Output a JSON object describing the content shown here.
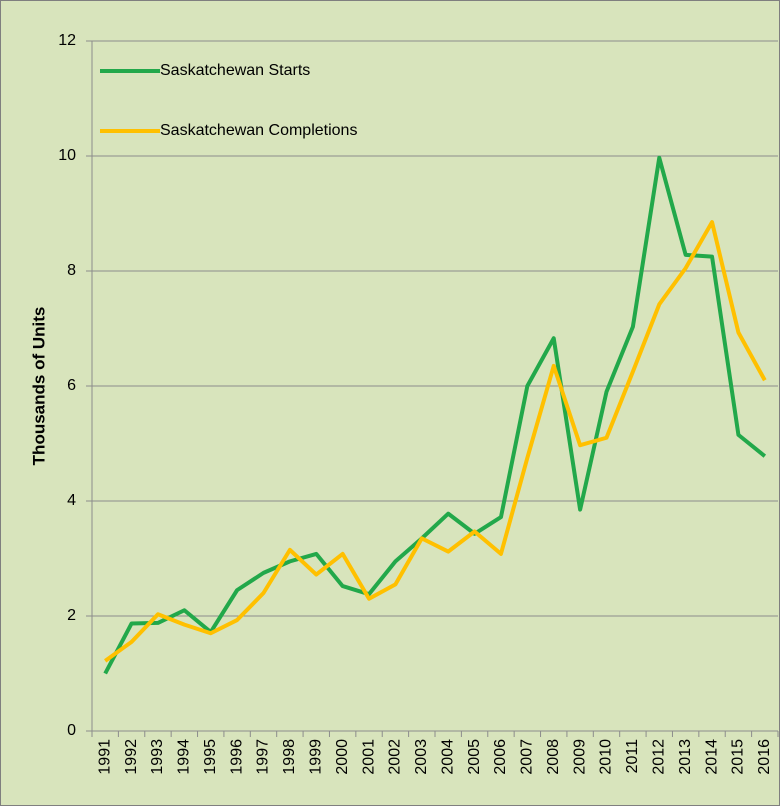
{
  "chart_data": {
    "type": "line",
    "y_label": "Thousands of Units",
    "categories": [
      "1991",
      "1992",
      "1993",
      "1994",
      "1995",
      "1996",
      "1997",
      "1998",
      "1999",
      "2000",
      "2001",
      "2002",
      "2003",
      "2004",
      "2005",
      "2006",
      "2007",
      "2008",
      "2009",
      "2010",
      "2011",
      "2012",
      "2013",
      "2014",
      "2015",
      "2016"
    ],
    "series": [
      {
        "name": "Saskatchewan Starts",
        "color": "#22a84a",
        "values": [
          1.0,
          1.87,
          1.88,
          2.1,
          1.72,
          2.45,
          2.75,
          2.95,
          3.08,
          2.52,
          2.38,
          2.95,
          3.35,
          3.78,
          3.43,
          3.72,
          6.0,
          6.83,
          3.85,
          5.9,
          7.03,
          9.97,
          8.28,
          8.25,
          5.15,
          4.78
        ]
      },
      {
        "name": "Saskatchewan Completions",
        "color": "#ffc000",
        "values": [
          1.22,
          1.55,
          2.03,
          1.85,
          1.7,
          1.93,
          2.4,
          3.15,
          2.72,
          3.08,
          2.3,
          2.55,
          3.35,
          3.12,
          3.47,
          3.08,
          4.75,
          6.35,
          4.97,
          5.1,
          6.25,
          7.42,
          8.05,
          8.85,
          6.93,
          6.1
        ]
      }
    ],
    "ylim": [
      0,
      12
    ],
    "yticks": [
      0,
      2,
      4,
      6,
      8,
      10,
      12
    ],
    "grid": true,
    "legend": "top-left"
  }
}
